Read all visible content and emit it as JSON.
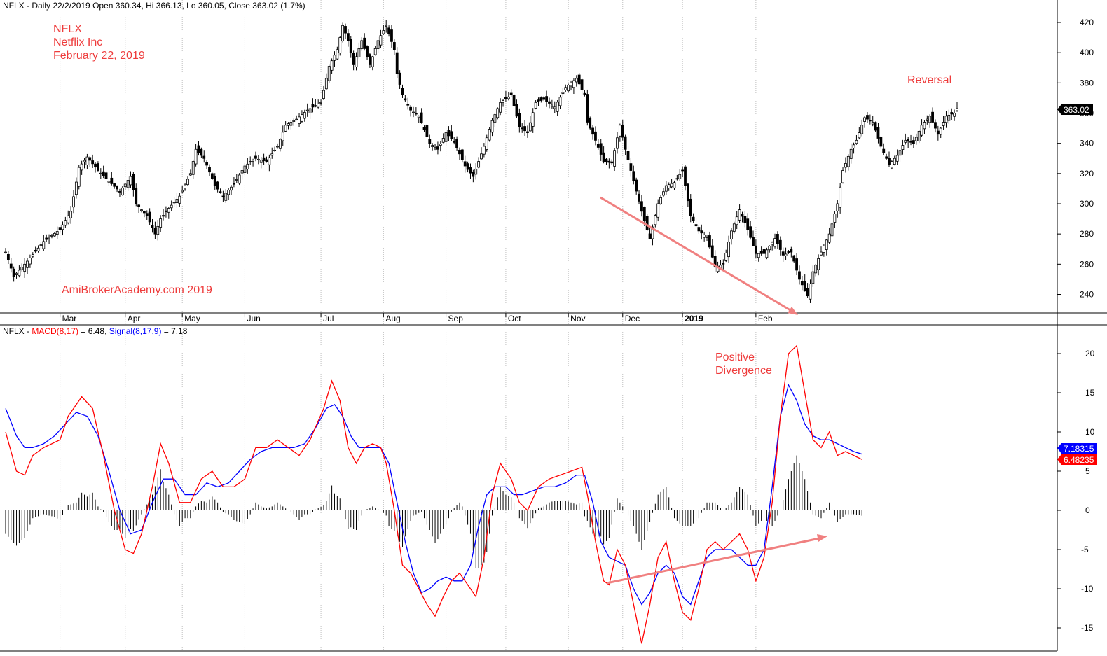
{
  "header": {
    "price": "NFLX - Daily 22/2/2019 Open 360.34, Hi 366.13, Lo 360.05, Close 363.02 (1.7%)",
    "macd_prefix": "NFLX - ",
    "macd_name": "MACD(8,17)",
    "macd_eq": " = 6.48, ",
    "signal_name": "Signal(8,17,9)",
    "signal_eq": " = 7.18"
  },
  "annotations": {
    "symbol": "NFLX",
    "company": "Netflix Inc",
    "date": "February 22, 2019",
    "watermark": "AmiBrokerAcademy.com   2019",
    "reversal": "Reversal",
    "divergence_1": "Positive",
    "divergence_2": "Divergence"
  },
  "tags": {
    "price_last": "363.02",
    "signal_last": "7.18315",
    "macd_last": "6.48235"
  },
  "colors": {
    "macd": "#ff0000",
    "signal": "#0000ff",
    "annotation": "#ee3b3b",
    "trendline": "#f08080",
    "up_candle": "#ffffff",
    "down_candle": "#000000"
  },
  "chart_data": [
    {
      "type": "candlestick",
      "title": "NFLX - Daily",
      "ylim": [
        225,
        430
      ],
      "y_ticks": [
        240,
        260,
        280,
        300,
        320,
        340,
        360,
        380,
        400,
        420
      ],
      "months": [
        "Mar",
        "Apr",
        "May",
        "Jun",
        "Jul",
        "Aug",
        "Sep",
        "Oct",
        "Nov",
        "Dec",
        "2019",
        "Feb"
      ],
      "close_anchors": [
        [
          0,
          268
        ],
        [
          3,
          252
        ],
        [
          8,
          262
        ],
        [
          14,
          275
        ],
        [
          20,
          283
        ],
        [
          24,
          295
        ],
        [
          27,
          324
        ],
        [
          30,
          331
        ],
        [
          34,
          322
        ],
        [
          38,
          315
        ],
        [
          42,
          308
        ],
        [
          46,
          318
        ],
        [
          48,
          300
        ],
        [
          52,
          292
        ],
        [
          55,
          280
        ],
        [
          57,
          290
        ],
        [
          60,
          297
        ],
        [
          64,
          305
        ],
        [
          68,
          320
        ],
        [
          70,
          336
        ],
        [
          73,
          330
        ],
        [
          77,
          312
        ],
        [
          80,
          305
        ],
        [
          84,
          313
        ],
        [
          88,
          325
        ],
        [
          92,
          330
        ],
        [
          96,
          328
        ],
        [
          100,
          338
        ],
        [
          103,
          352
        ],
        [
          107,
          356
        ],
        [
          111,
          362
        ],
        [
          116,
          367
        ],
        [
          119,
          391
        ],
        [
          122,
          402
        ],
        [
          124,
          418
        ],
        [
          126,
          408
        ],
        [
          128,
          392
        ],
        [
          131,
          408
        ],
        [
          134,
          392
        ],
        [
          137,
          408
        ],
        [
          140,
          418
        ],
        [
          143,
          402
        ],
        [
          144,
          386
        ],
        [
          146,
          372
        ],
        [
          149,
          362
        ],
        [
          152,
          358
        ],
        [
          156,
          340
        ],
        [
          159,
          336
        ],
        [
          162,
          347
        ],
        [
          165,
          341
        ],
        [
          169,
          325
        ],
        [
          172,
          318
        ],
        [
          176,
          338
        ],
        [
          179,
          355
        ],
        [
          182,
          367
        ],
        [
          186,
          372
        ],
        [
          189,
          351
        ],
        [
          192,
          347
        ],
        [
          195,
          367
        ],
        [
          198,
          369
        ],
        [
          202,
          364
        ],
        [
          206,
          377
        ],
        [
          210,
          383
        ],
        [
          213,
          372
        ],
        [
          214,
          354
        ],
        [
          217,
          342
        ],
        [
          220,
          328
        ],
        [
          223,
          327
        ],
        [
          226,
          352
        ],
        [
          228,
          336
        ],
        [
          231,
          315
        ],
        [
          234,
          295
        ],
        [
          237,
          277
        ],
        [
          240,
          300
        ],
        [
          243,
          312
        ],
        [
          246,
          314
        ],
        [
          249,
          322
        ],
        [
          252,
          292
        ],
        [
          255,
          282
        ],
        [
          258,
          278
        ],
        [
          261,
          258
        ],
        [
          264,
          260
        ],
        [
          267,
          282
        ],
        [
          270,
          296
        ],
        [
          273,
          283
        ],
        [
          276,
          267
        ],
        [
          279,
          267
        ],
        [
          283,
          277
        ],
        [
          286,
          266
        ],
        [
          289,
          268
        ],
        [
          292,
          250
        ],
        [
          295,
          239
        ],
        [
          297,
          255
        ],
        [
          300,
          268
        ],
        [
          303,
          280
        ],
        [
          306,
          300
        ],
        [
          308,
          322
        ],
        [
          311,
          336
        ],
        [
          313,
          342
        ],
        [
          316,
          357
        ],
        [
          319,
          354
        ],
        [
          322,
          338
        ],
        [
          325,
          326
        ],
        [
          328,
          332
        ],
        [
          331,
          342
        ],
        [
          334,
          340
        ],
        [
          337,
          352
        ],
        [
          340,
          358
        ],
        [
          343,
          346
        ],
        [
          346,
          358
        ],
        [
          349,
          360
        ],
        [
          350,
          363.02
        ]
      ]
    },
    {
      "type": "line",
      "title": "MACD(8,17) / Signal(8,17,9)",
      "ylim": [
        -18,
        24
      ],
      "y_ticks": [
        -15,
        -10,
        -5,
        0,
        5,
        10,
        15,
        20
      ],
      "series": [
        {
          "name": "MACD(8,17)",
          "anchors": [
            [
              0,
              10
            ],
            [
              4,
              5
            ],
            [
              7,
              4.5
            ],
            [
              10,
              7
            ],
            [
              14,
              8
            ],
            [
              20,
              9
            ],
            [
              23,
              12
            ],
            [
              28,
              14.5
            ],
            [
              32,
              13
            ],
            [
              36,
              7
            ],
            [
              40,
              0
            ],
            [
              44,
              -5
            ],
            [
              47,
              -5.5
            ],
            [
              50,
              -3
            ],
            [
              54,
              3
            ],
            [
              57,
              8.5
            ],
            [
              60,
              6
            ],
            [
              64,
              1
            ],
            [
              68,
              1
            ],
            [
              72,
              4
            ],
            [
              76,
              5
            ],
            [
              80,
              3
            ],
            [
              84,
              3
            ],
            [
              88,
              4
            ],
            [
              92,
              8
            ],
            [
              96,
              8
            ],
            [
              100,
              9
            ],
            [
              104,
              8
            ],
            [
              108,
              7
            ],
            [
              112,
              9
            ],
            [
              117,
              13
            ],
            [
              120,
              16.5
            ],
            [
              123,
              14
            ],
            [
              126,
              8
            ],
            [
              129,
              6
            ],
            [
              132,
              8
            ],
            [
              135,
              8.5
            ],
            [
              138,
              8
            ],
            [
              140,
              6
            ],
            [
              143,
              0
            ],
            [
              146,
              -7
            ],
            [
              149,
              -8
            ],
            [
              152,
              -10
            ],
            [
              155,
              -12
            ],
            [
              158,
              -13.5
            ],
            [
              161,
              -11
            ],
            [
              164,
              -9
            ],
            [
              167,
              -8
            ],
            [
              170,
              -9.5
            ],
            [
              173,
              -11
            ],
            [
              176,
              -6
            ],
            [
              179,
              2
            ],
            [
              182,
              6
            ],
            [
              186,
              4
            ],
            [
              189,
              1
            ],
            [
              192,
              0
            ],
            [
              196,
              3
            ],
            [
              200,
              4
            ],
            [
              204,
              4.5
            ],
            [
              208,
              5
            ],
            [
              212,
              5.5
            ],
            [
              214,
              2
            ],
            [
              217,
              -4
            ],
            [
              220,
              -9
            ],
            [
              222,
              -9.5
            ],
            [
              225,
              -5
            ],
            [
              228,
              -7
            ],
            [
              231,
              -12
            ],
            [
              234,
              -17
            ],
            [
              237,
              -12
            ],
            [
              240,
              -6
            ],
            [
              243,
              -4
            ],
            [
              246,
              -9
            ],
            [
              249,
              -13
            ],
            [
              252,
              -14
            ],
            [
              255,
              -10
            ],
            [
              258,
              -5
            ],
            [
              261,
              -4
            ],
            [
              264,
              -5
            ],
            [
              267,
              -4
            ],
            [
              270,
              -3
            ],
            [
              273,
              -5
            ],
            [
              276,
              -9
            ],
            [
              279,
              -6
            ],
            [
              282,
              1
            ],
            [
              285,
              12
            ],
            [
              288,
              20
            ],
            [
              291,
              21
            ],
            [
              294,
              15
            ],
            [
              297,
              9
            ],
            [
              300,
              8
            ],
            [
              303,
              10
            ],
            [
              306,
              7
            ],
            [
              309,
              7.5
            ],
            [
              312,
              7
            ],
            [
              315,
              6.5
            ]
          ]
        },
        {
          "name": "Signal(8,17,9)",
          "anchors": [
            [
              0,
              13
            ],
            [
              4,
              9.5
            ],
            [
              7,
              8
            ],
            [
              10,
              8
            ],
            [
              14,
              8.5
            ],
            [
              18,
              9.5
            ],
            [
              22,
              11
            ],
            [
              26,
              12.5
            ],
            [
              30,
              12
            ],
            [
              34,
              9.5
            ],
            [
              38,
              5
            ],
            [
              42,
              0
            ],
            [
              46,
              -3
            ],
            [
              50,
              -2.5
            ],
            [
              54,
              1
            ],
            [
              58,
              4
            ],
            [
              62,
              4
            ],
            [
              66,
              2
            ],
            [
              70,
              2
            ],
            [
              74,
              3.5
            ],
            [
              78,
              3
            ],
            [
              82,
              3.5
            ],
            [
              86,
              5
            ],
            [
              90,
              6.5
            ],
            [
              94,
              7.5
            ],
            [
              98,
              8
            ],
            [
              102,
              8
            ],
            [
              106,
              8
            ],
            [
              110,
              8.5
            ],
            [
              114,
              10.5
            ],
            [
              118,
              13
            ],
            [
              121,
              13.5
            ],
            [
              124,
              12
            ],
            [
              127,
              9.5
            ],
            [
              130,
              8
            ],
            [
              134,
              8
            ],
            [
              138,
              8
            ],
            [
              141,
              6
            ],
            [
              144,
              1
            ],
            [
              147,
              -4
            ],
            [
              150,
              -8
            ],
            [
              153,
              -10.5
            ],
            [
              156,
              -10
            ],
            [
              159,
              -9
            ],
            [
              162,
              -8.5
            ],
            [
              165,
              -9
            ],
            [
              168,
              -9
            ],
            [
              171,
              -7
            ],
            [
              174,
              -2
            ],
            [
              177,
              2
            ],
            [
              180,
              3
            ],
            [
              184,
              3
            ],
            [
              187,
              2
            ],
            [
              190,
              2
            ],
            [
              194,
              2.5
            ],
            [
              198,
              3
            ],
            [
              202,
              3
            ],
            [
              206,
              3.5
            ],
            [
              210,
              4.5
            ],
            [
              213,
              4.5
            ],
            [
              216,
              1
            ],
            [
              219,
              -4
            ],
            [
              222,
              -6
            ],
            [
              225,
              -6.5
            ],
            [
              228,
              -7
            ],
            [
              231,
              -10
            ],
            [
              234,
              -12
            ],
            [
              237,
              -10.5
            ],
            [
              240,
              -8
            ],
            [
              243,
              -7
            ],
            [
              246,
              -8
            ],
            [
              249,
              -11
            ],
            [
              252,
              -12
            ],
            [
              255,
              -9
            ],
            [
              258,
              -6
            ],
            [
              261,
              -5
            ],
            [
              264,
              -5
            ],
            [
              267,
              -5
            ],
            [
              270,
              -6
            ],
            [
              273,
              -7
            ],
            [
              276,
              -7
            ],
            [
              279,
              -5
            ],
            [
              282,
              3
            ],
            [
              285,
              12
            ],
            [
              288,
              16
            ],
            [
              291,
              14
            ],
            [
              294,
              11
            ],
            [
              297,
              9.5
            ],
            [
              300,
              9
            ],
            [
              303,
              9
            ],
            [
              306,
              8.5
            ],
            [
              309,
              8
            ],
            [
              312,
              7.5
            ],
            [
              315,
              7.18
            ]
          ]
        }
      ]
    }
  ]
}
